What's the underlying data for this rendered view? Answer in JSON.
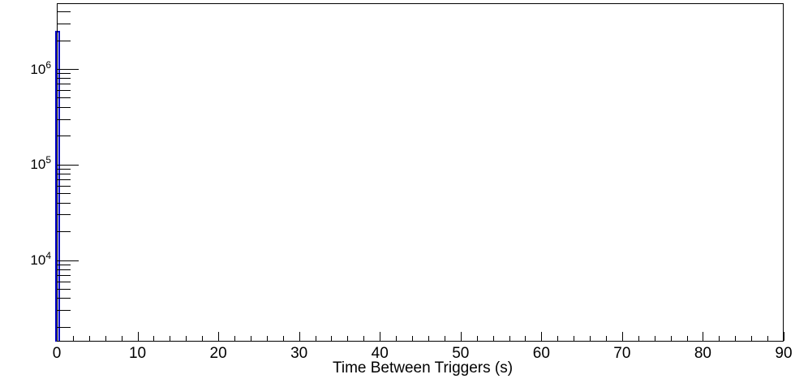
{
  "colors": {
    "background": "#ffffff",
    "axis": "#000000",
    "histogram_line": "#0000cc"
  },
  "chart_data": {
    "type": "histogram",
    "title": "",
    "xlabel": "Time Between Triggers (s)",
    "ylabel": "",
    "legend": "none",
    "grid": "off",
    "x_axis": {
      "min": 0,
      "max": 90,
      "major_tick_step": 10,
      "minor_tick_step": 2,
      "tick_labels": [
        "0",
        "10",
        "20",
        "30",
        "40",
        "50",
        "60",
        "70",
        "80",
        "90"
      ]
    },
    "y_axis": {
      "scale": "log",
      "min_approx": 1400,
      "max_approx": 4700000,
      "minor_ticks": "at 2-9 of each visible decade",
      "decade_labels": [
        {
          "base": "10",
          "exp": "4",
          "value": 10000
        },
        {
          "base": "10",
          "exp": "5",
          "value": 100000
        },
        {
          "base": "10",
          "exp": "6",
          "value": 1000000
        }
      ]
    },
    "series": [
      {
        "name": "time-between-triggers-histogram",
        "line_color": "#0000cc",
        "visible_bins": [
          {
            "x_low": 0,
            "x_high": 0.4,
            "count_approx": 2500000
          }
        ],
        "note": "all other bins empty / below y-axis minimum; plot area otherwise blank"
      }
    ]
  }
}
